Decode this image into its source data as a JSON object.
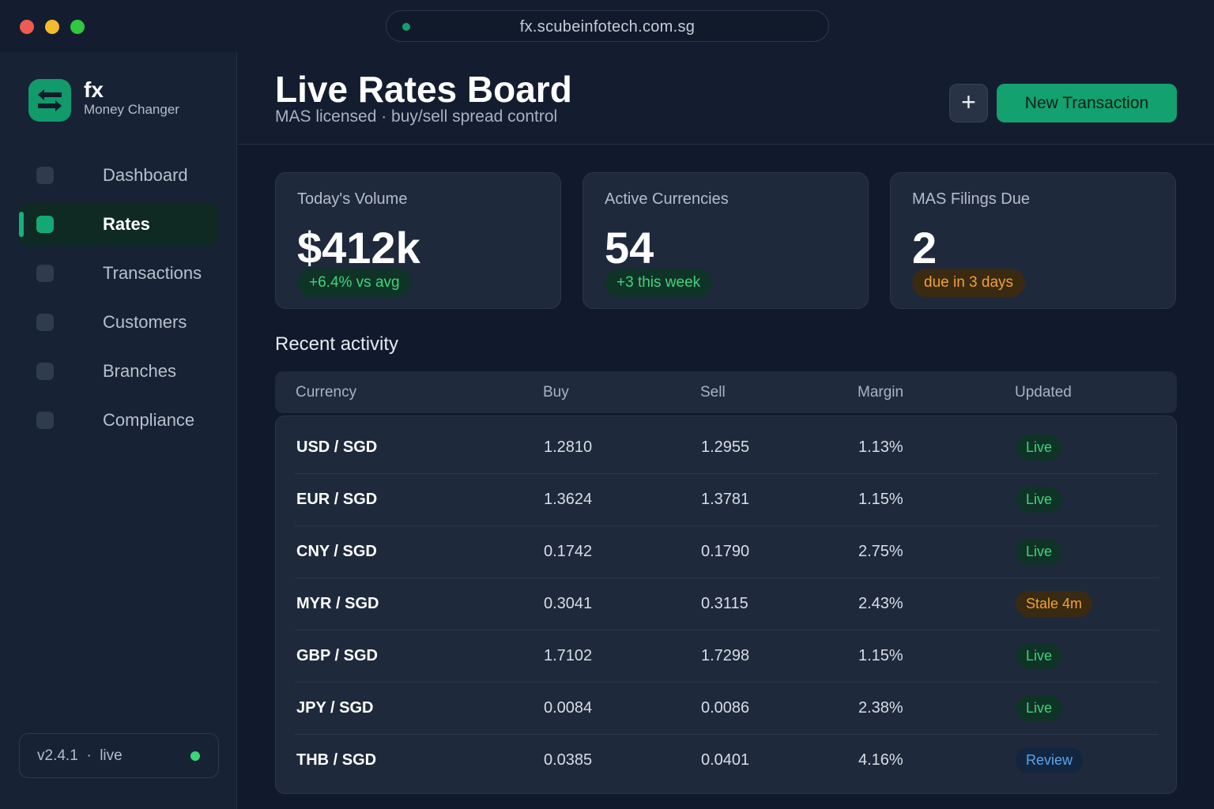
{
  "browser": {
    "url": "fx.scubeinfotech.com.sg"
  },
  "brand": {
    "name": "fx",
    "subtitle": "Money Changer"
  },
  "sidebar": {
    "items": [
      {
        "label": "Dashboard",
        "active": false
      },
      {
        "label": "Rates",
        "active": true
      },
      {
        "label": "Transactions",
        "active": false
      },
      {
        "label": "Customers",
        "active": false
      },
      {
        "label": "Branches",
        "active": false
      },
      {
        "label": "Compliance",
        "active": false
      }
    ],
    "version": "v2.4.1  ·  live"
  },
  "header": {
    "title": "Live Rates Board",
    "subtitle": "MAS licensed · buy/sell spread control",
    "plus_label": "+",
    "new_button": "New Transaction"
  },
  "stats": [
    {
      "label": "Today's Volume",
      "value": "$412k",
      "pill": "+6.4% vs avg",
      "pill_tone": "green"
    },
    {
      "label": "Active Currencies",
      "value": "54",
      "pill": "+3 this week",
      "pill_tone": "green"
    },
    {
      "label": "MAS Filings Due",
      "value": "2",
      "pill": "due in 3 days",
      "pill_tone": "amber"
    }
  ],
  "activity": {
    "title": "Recent activity",
    "columns": [
      "Currency",
      "Buy",
      "Sell",
      "Margin",
      "Updated"
    ],
    "rows": [
      {
        "currency": "USD / SGD",
        "buy": "1.2810",
        "sell": "1.2955",
        "margin": "1.13%",
        "status": "Live",
        "tone": "live"
      },
      {
        "currency": "EUR / SGD",
        "buy": "1.3624",
        "sell": "1.3781",
        "margin": "1.15%",
        "status": "Live",
        "tone": "live"
      },
      {
        "currency": "CNY / SGD",
        "buy": "0.1742",
        "sell": "0.1790",
        "margin": "2.75%",
        "status": "Live",
        "tone": "live"
      },
      {
        "currency": "MYR / SGD",
        "buy": "0.3041",
        "sell": "0.3115",
        "margin": "2.43%",
        "status": "Stale 4m",
        "tone": "stale"
      },
      {
        "currency": "GBP / SGD",
        "buy": "1.7102",
        "sell": "1.7298",
        "margin": "1.15%",
        "status": "Live",
        "tone": "live"
      },
      {
        "currency": "JPY / SGD",
        "buy": "0.0084",
        "sell": "0.0086",
        "margin": "2.38%",
        "status": "Live",
        "tone": "live"
      },
      {
        "currency": "THB / SGD",
        "buy": "0.0385",
        "sell": "0.0401",
        "margin": "4.16%",
        "status": "Review",
        "tone": "review"
      }
    ]
  },
  "colors": {
    "accent": "#12a16f",
    "live": "#3ed57b",
    "stale": "#f0a133",
    "review": "#5aa3f0"
  }
}
